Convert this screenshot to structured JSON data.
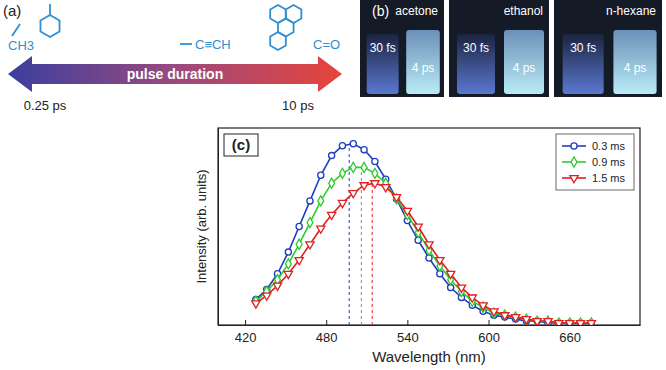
{
  "panel_a": {
    "label": "(a)",
    "arrow_text": "pulse duration",
    "left_value": "0.25 ps",
    "right_value": "10 ps",
    "groups": [
      "CH3",
      "C≡CH",
      "C=O"
    ]
  },
  "panel_b": {
    "label": "(b)",
    "photos": [
      {
        "solvent": "acetone",
        "left": "30 fs",
        "right": "4 ps"
      },
      {
        "solvent": "ethanol",
        "left": "30 fs",
        "right": "4 ps"
      },
      {
        "solvent": "n-hexane",
        "left": "30 fs",
        "right": "4 ps"
      }
    ]
  },
  "chart_data": {
    "type": "line",
    "label": "(c)",
    "x_label": "Wavelength (nm)",
    "y_label": "Intensity (arb. units)",
    "x": [
      428,
      436,
      444,
      452,
      460,
      468,
      476,
      484,
      492,
      500,
      508,
      516,
      524,
      532,
      540,
      548,
      556,
      564,
      572,
      580,
      588,
      596,
      604,
      612,
      620,
      628,
      636,
      644,
      652,
      660,
      668,
      676
    ],
    "xlim": [
      400,
      712
    ],
    "xticks": [
      420,
      480,
      540,
      600,
      660
    ],
    "ylim": [
      0,
      1
    ],
    "tick_labels": "x",
    "legend": "upper right",
    "series": [
      {
        "name": "0.3 ms",
        "color": "#1f3fbf",
        "marker": "circle",
        "peak": 497,
        "values": [
          0.13,
          0.18,
          0.26,
          0.37,
          0.5,
          0.63,
          0.76,
          0.86,
          0.91,
          0.92,
          0.89,
          0.83,
          0.74,
          0.64,
          0.53,
          0.43,
          0.34,
          0.26,
          0.19,
          0.14,
          0.1,
          0.07,
          0.05,
          0.04,
          0.03,
          0.02,
          0.02,
          0.01,
          0.01,
          0.01,
          0.01,
          0.01
        ]
      },
      {
        "name": "0.9 ms",
        "color": "#2ecc2e",
        "marker": "diamond",
        "peak": 506,
        "values": [
          0.12,
          0.17,
          0.23,
          0.31,
          0.41,
          0.52,
          0.63,
          0.72,
          0.77,
          0.8,
          0.8,
          0.77,
          0.72,
          0.64,
          0.56,
          0.47,
          0.38,
          0.3,
          0.23,
          0.17,
          0.12,
          0.09,
          0.06,
          0.05,
          0.04,
          0.03,
          0.02,
          0.02,
          0.01,
          0.01,
          0.01,
          0.01
        ]
      },
      {
        "name": "1.5 ms",
        "color": "#e02020",
        "marker": "triangle-down",
        "peak": 514,
        "values": [
          0.11,
          0.15,
          0.2,
          0.26,
          0.33,
          0.41,
          0.49,
          0.56,
          0.62,
          0.67,
          0.71,
          0.72,
          0.7,
          0.65,
          0.58,
          0.5,
          0.41,
          0.33,
          0.26,
          0.19,
          0.14,
          0.1,
          0.07,
          0.05,
          0.04,
          0.03,
          0.02,
          0.02,
          0.01,
          0.01,
          0.01,
          0.01
        ]
      }
    ]
  }
}
